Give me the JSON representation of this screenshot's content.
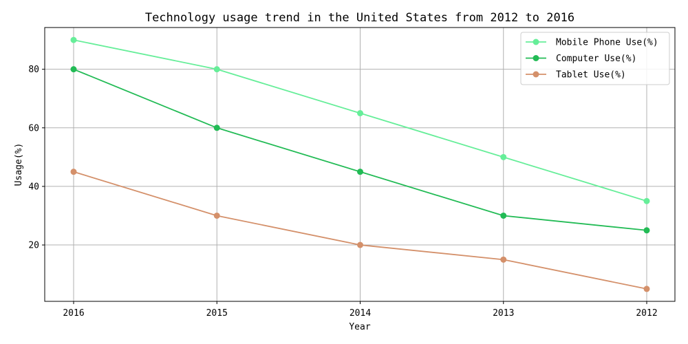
{
  "chart_data": {
    "type": "line",
    "title": "Technology usage trend in the United States from 2012 to 2016",
    "xlabel": "Year",
    "ylabel": "Usage(%)",
    "categories": [
      "2016",
      "2015",
      "2014",
      "2013",
      "2012"
    ],
    "series": [
      {
        "name": "Mobile Phone Use(%)",
        "values": [
          90,
          80,
          65,
          50,
          35
        ],
        "color": "#66ee99"
      },
      {
        "name": "Computer Use(%)",
        "values": [
          80,
          60,
          45,
          30,
          25
        ],
        "color": "#22bb55"
      },
      {
        "name": "Tablet Use(%)",
        "values": [
          45,
          30,
          20,
          15,
          5
        ],
        "color": "#d4906a"
      }
    ],
    "yticks": [
      20,
      40,
      60,
      80
    ],
    "ylim": [
      0.75,
      94.25
    ],
    "grid": true,
    "legend_position": "top-right",
    "colors": {
      "grid": "#b0b0b0",
      "axis": "#000000",
      "legend_border": "#cccccc"
    }
  }
}
